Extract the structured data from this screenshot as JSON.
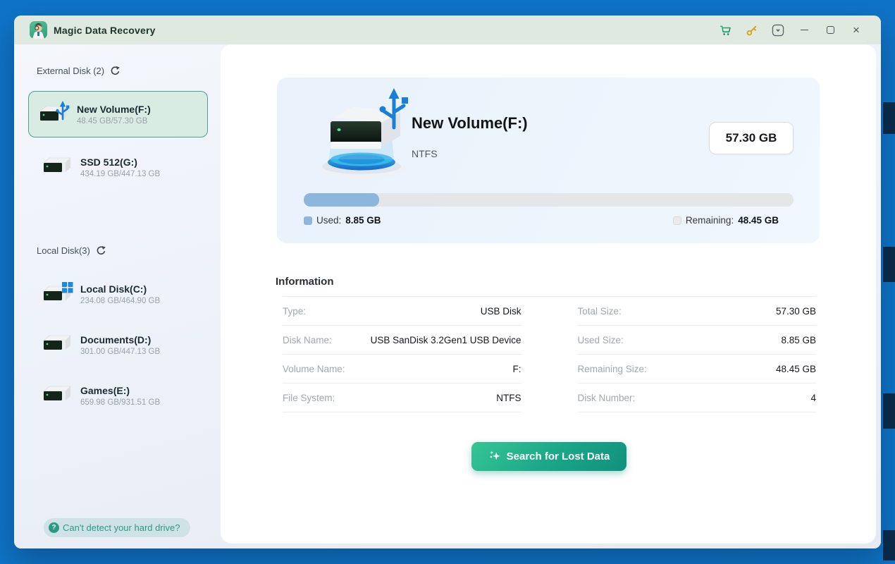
{
  "titlebar": {
    "app_title": "Magic Data Recovery"
  },
  "sidebar": {
    "external_section_label": "External Disk (2)",
    "local_section_label": "Local Disk(3)",
    "drives": [
      {
        "name": "New Volume(F:)",
        "capacity": "48.45 GB/57.30 GB",
        "selected": true
      },
      {
        "name": "SSD 512(G:)",
        "capacity": "434.19 GB/447.13 GB"
      },
      {
        "name": "Local Disk(C:)",
        "capacity": "234.08 GB/464.90 GB"
      },
      {
        "name": "Documents(D:)",
        "capacity": "301.00 GB/447.13 GB"
      },
      {
        "name": "Games(E:)",
        "capacity": "659.98 GB/931.51 GB"
      }
    ],
    "help_link": "Can't detect your hard drive?"
  },
  "hero": {
    "volume_name": "New Volume(F:)",
    "file_system": "NTFS",
    "total_size": "57.30 GB",
    "progress_percent": 15.45,
    "used_label": "Used:",
    "used_value": "8.85 GB",
    "remaining_label": "Remaining:",
    "remaining_value": "48.45 GB"
  },
  "information": {
    "title": "Information",
    "rows": [
      {
        "left_label": "Type:",
        "left_value": "USB Disk",
        "right_label": "Total Size:",
        "right_value": "57.30 GB"
      },
      {
        "left_label": "Disk Name:",
        "left_value": "USB SanDisk 3.2Gen1 USB Device",
        "right_label": "Used Size:",
        "right_value": "8.85 GB"
      },
      {
        "left_label": "Volume Name:",
        "left_value": "F:",
        "right_label": "Remaining Size:",
        "right_value": "48.45 GB"
      },
      {
        "left_label": "File System:",
        "left_value": "NTFS",
        "right_label": "Disk Number:",
        "right_value": "4"
      }
    ]
  },
  "action": {
    "search_button": "Search for Lost Data"
  },
  "icons": {
    "titlebar": [
      "cart-icon",
      "key-icon",
      "dropdown-icon",
      "minimize-icon",
      "maximize-icon",
      "close-icon"
    ],
    "sidebar": [
      "refresh-icon",
      "usb-drive-icon",
      "hdd-icon",
      "windows-drive-icon",
      "question-icon"
    ],
    "button": "sparkles-icon"
  },
  "colors": {
    "desktop_blue": "#0f74c8",
    "titlebar_green": "#dfe9e0",
    "accent_green": "#17a184",
    "selected_border": "#4f9f8b",
    "used_blue": "#8cb6dc",
    "usb_symbol_blue": "#1b7fd6",
    "key_gold": "#d2a31f"
  }
}
